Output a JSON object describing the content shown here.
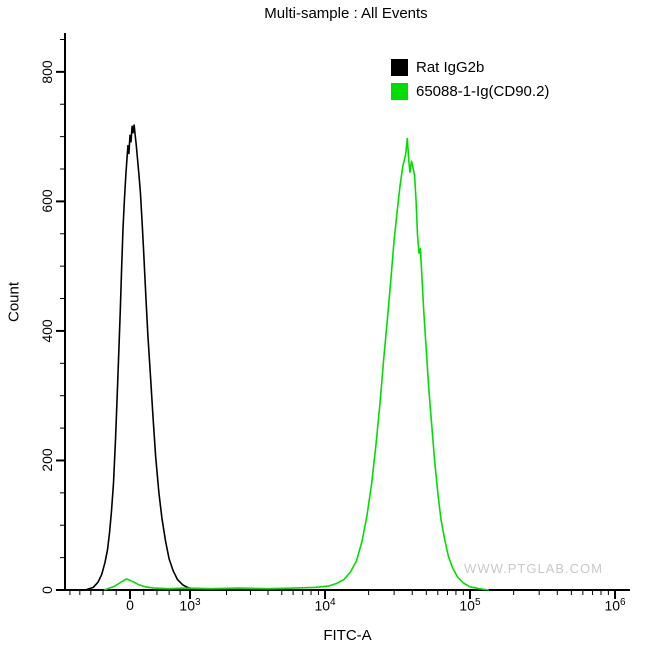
{
  "chart_data": {
    "type": "line",
    "subtype": "flow-cytometry-histogram",
    "title": "Multi-sample : All Events",
    "xlabel": "FITC-A",
    "ylabel": "Count",
    "watermark": "WWW.PTGLAB.COM",
    "ylim": [
      0,
      860
    ],
    "xlim_display": [
      -1100,
      1270000
    ],
    "grid": false,
    "x_scale": {
      "type": "biexponential-asinh",
      "linear_width": 906,
      "zero_fraction": 0.115,
      "fraction_per_asinh_unit": 0.1115
    },
    "y_major_ticks": [
      0,
      200,
      400,
      600,
      800
    ],
    "y_minor_step": 50,
    "x_major_ticks": [
      {
        "value": 0,
        "label": "0"
      },
      {
        "value": 1000,
        "base": "10",
        "exp": "3"
      },
      {
        "value": 10000,
        "base": "10",
        "exp": "4"
      },
      {
        "value": 100000,
        "base": "10",
        "exp": "5"
      },
      {
        "value": 1000000,
        "base": "10",
        "exp": "6"
      }
    ],
    "x_minor_ticks": [
      -1000,
      -800,
      -600,
      -400,
      -200,
      200,
      400,
      600,
      800,
      2000,
      3000,
      4000,
      5000,
      6000,
      7000,
      8000,
      9000,
      20000,
      30000,
      40000,
      50000,
      60000,
      70000,
      80000,
      90000,
      200000,
      300000,
      400000,
      500000,
      600000,
      700000,
      800000,
      900000
    ],
    "legend": {
      "position": "top-right",
      "items": [
        {
          "label": "Rat IgG2b",
          "color": "#000000"
        },
        {
          "label": "65088-1-Ig(CD90.2)",
          "color": "#00DE00"
        }
      ]
    },
    "series": [
      {
        "name": "Rat IgG2b",
        "color": "#000000",
        "points": [
          [
            -700,
            0
          ],
          [
            -560,
            4
          ],
          [
            -480,
            12
          ],
          [
            -420,
            24
          ],
          [
            -370,
            42
          ],
          [
            -330,
            62
          ],
          [
            -300,
            88
          ],
          [
            -270,
            122
          ],
          [
            -240,
            165
          ],
          [
            -210,
            232
          ],
          [
            -185,
            300
          ],
          [
            -160,
            372
          ],
          [
            -140,
            432
          ],
          [
            -120,
            500
          ],
          [
            -100,
            558
          ],
          [
            -80,
            602
          ],
          [
            -60,
            640
          ],
          [
            -45,
            662
          ],
          [
            -30,
            686
          ],
          [
            -15,
            674
          ],
          [
            0,
            702
          ],
          [
            15,
            692
          ],
          [
            30,
            716
          ],
          [
            45,
            706
          ],
          [
            60,
            718
          ],
          [
            75,
            702
          ],
          [
            90,
            688
          ],
          [
            110,
            664
          ],
          [
            130,
            640
          ],
          [
            150,
            614
          ],
          [
            175,
            568
          ],
          [
            200,
            518
          ],
          [
            230,
            455
          ],
          [
            260,
            395
          ],
          [
            300,
            330
          ],
          [
            340,
            265
          ],
          [
            380,
            205
          ],
          [
            430,
            150
          ],
          [
            480,
            110
          ],
          [
            540,
            75
          ],
          [
            600,
            48
          ],
          [
            670,
            30
          ],
          [
            750,
            16
          ],
          [
            850,
            8
          ],
          [
            950,
            4
          ],
          [
            1100,
            1
          ],
          [
            1250,
            0
          ]
        ]
      },
      {
        "name": "65088-1-Ig(CD90.2)",
        "color": "#00DE00",
        "points": [
          [
            -380,
            0
          ],
          [
            -300,
            3
          ],
          [
            -220,
            6
          ],
          [
            -160,
            10
          ],
          [
            -100,
            14
          ],
          [
            -50,
            17
          ],
          [
            0,
            15
          ],
          [
            60,
            12
          ],
          [
            130,
            8
          ],
          [
            220,
            5
          ],
          [
            350,
            3
          ],
          [
            600,
            2
          ],
          [
            900,
            3
          ],
          [
            1500,
            2
          ],
          [
            2500,
            3
          ],
          [
            4000,
            2
          ],
          [
            6000,
            3
          ],
          [
            8500,
            4
          ],
          [
            10500,
            6
          ],
          [
            12000,
            10
          ],
          [
            13500,
            16
          ],
          [
            15000,
            28
          ],
          [
            16500,
            45
          ],
          [
            18000,
            75
          ],
          [
            19500,
            115
          ],
          [
            21000,
            165
          ],
          [
            22500,
            225
          ],
          [
            24000,
            290
          ],
          [
            25500,
            360
          ],
          [
            27000,
            420
          ],
          [
            28500,
            480
          ],
          [
            30000,
            540
          ],
          [
            31500,
            585
          ],
          [
            33000,
            625
          ],
          [
            34500,
            655
          ],
          [
            36000,
            672
          ],
          [
            37000,
            697
          ],
          [
            37800,
            665
          ],
          [
            38500,
            645
          ],
          [
            39500,
            662
          ],
          [
            40500,
            652
          ],
          [
            41500,
            640
          ],
          [
            42500,
            600
          ],
          [
            43500,
            548
          ],
          [
            44500,
            520
          ],
          [
            45500,
            527
          ],
          [
            46500,
            490
          ],
          [
            48000,
            432
          ],
          [
            50000,
            370
          ],
          [
            52000,
            310
          ],
          [
            54500,
            255
          ],
          [
            57000,
            200
          ],
          [
            60000,
            150
          ],
          [
            63000,
            110
          ],
          [
            67000,
            78
          ],
          [
            71000,
            52
          ],
          [
            76000,
            34
          ],
          [
            82000,
            20
          ],
          [
            90000,
            11
          ],
          [
            100000,
            5
          ],
          [
            115000,
            2
          ],
          [
            135000,
            0
          ]
        ]
      }
    ]
  }
}
